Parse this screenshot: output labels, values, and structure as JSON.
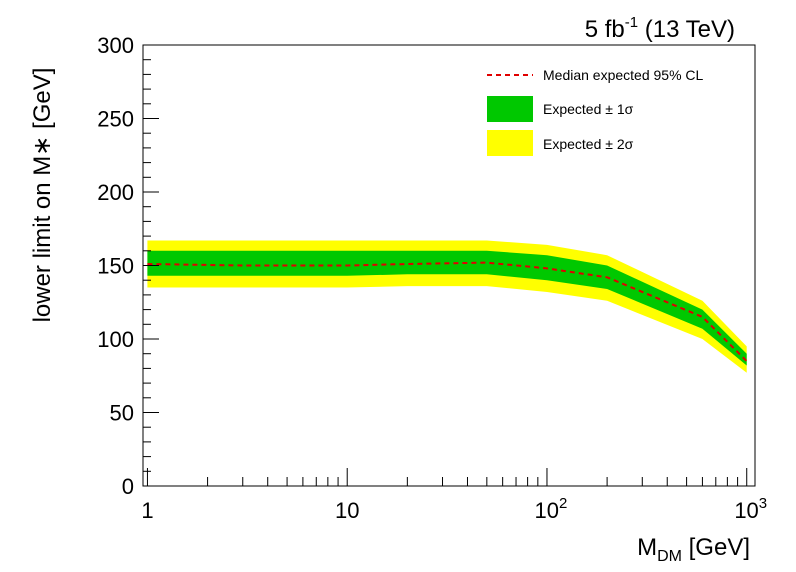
{
  "chart_data": {
    "type": "area",
    "title": "5 fb",
    "title_sup": "-1",
    "title_rest": " (13 TeV)",
    "xlabel_main": "M",
    "xlabel_sub": "DM",
    "xlabel_rest": " [GeV]",
    "ylabel": "lower limit on M∗ [GeV]",
    "xscale": "log",
    "xlim": [
      0.95,
      1100
    ],
    "ylim": [
      0,
      300
    ],
    "x_ticks": [
      {
        "value": 1,
        "base": "1",
        "sup": ""
      },
      {
        "value": 10,
        "base": "10",
        "sup": ""
      },
      {
        "value": 100,
        "base": "10",
        "sup": "2"
      },
      {
        "value": 1000,
        "base": "10",
        "sup": "3"
      }
    ],
    "y_ticks": [
      "0",
      "50",
      "100",
      "150",
      "200",
      "250",
      "300"
    ],
    "legend_position": "top-right",
    "legend": {
      "median": "Median expected 95% CL",
      "one_sigma": "Expected ± 1σ",
      "two_sigma": "Expected ± 2σ"
    },
    "colors": {
      "median": "#e00000",
      "one_sigma": "#00c800",
      "two_sigma": "#ffff00"
    },
    "x": [
      1,
      3,
      10,
      20,
      50,
      100,
      200,
      600,
      1000
    ],
    "median": [
      151,
      150,
      150,
      151,
      152,
      148,
      142,
      115,
      85
    ],
    "one_sigma_lo": [
      143,
      143,
      143,
      144,
      144,
      140,
      134,
      107,
      82
    ],
    "one_sigma_hi": [
      160,
      160,
      160,
      160,
      160,
      157,
      150,
      120,
      90
    ],
    "two_sigma_lo": [
      135,
      135,
      135,
      136,
      136,
      132,
      126,
      100,
      77
    ],
    "two_sigma_hi": [
      167,
      167,
      167,
      167,
      167,
      164,
      157,
      126,
      95
    ]
  }
}
